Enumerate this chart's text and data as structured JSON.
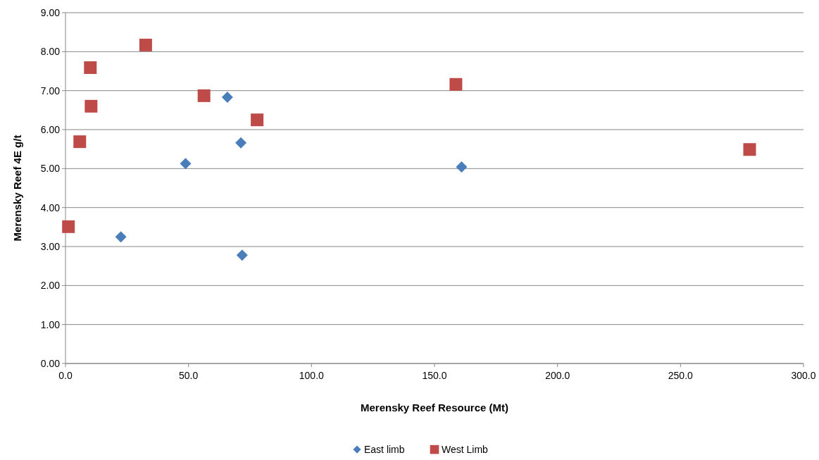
{
  "chart_data": {
    "type": "scatter",
    "xlabel": "Merensky Reef Resource (Mt)",
    "ylabel": "Merensky Reef 4E g/t",
    "xlim": [
      0,
      300
    ],
    "xticks": [
      {
        "value": 0,
        "label": "0.0"
      },
      {
        "value": 50,
        "label": "50.0"
      },
      {
        "value": 100,
        "label": "100.0"
      },
      {
        "value": 150,
        "label": "150.0"
      },
      {
        "value": 200,
        "label": "200.0"
      },
      {
        "value": 250,
        "label": "250.0"
      },
      {
        "value": 300,
        "label": "300.0"
      }
    ],
    "ylim": [
      0,
      9
    ],
    "yticks": [
      {
        "value": 0,
        "label": "0.00"
      },
      {
        "value": 1,
        "label": "1.00"
      },
      {
        "value": 2,
        "label": "2.00"
      },
      {
        "value": 3,
        "label": "3.00"
      },
      {
        "value": 4,
        "label": "4.00"
      },
      {
        "value": 5,
        "label": "5.00"
      },
      {
        "value": 6,
        "label": "6.00"
      },
      {
        "value": 7,
        "label": "7.00"
      },
      {
        "value": 8,
        "label": "8.00"
      },
      {
        "value": 9,
        "label": "9.00"
      }
    ],
    "grid": "y",
    "legend": "bottom",
    "series": [
      {
        "name": "East limb",
        "color": "#4a7ebb",
        "marker": "diamond",
        "x": [
          22.5,
          48.8,
          65.8,
          71.3,
          71.8,
          161.0
        ],
        "values": [
          3.25,
          5.13,
          6.83,
          5.66,
          2.78,
          5.04
        ]
      },
      {
        "name": "West Limb",
        "color": "#be4b48",
        "marker": "square",
        "x": [
          1.2,
          5.8,
          10.1,
          10.4,
          32.6,
          56.3,
          77.9,
          158.7,
          278.1
        ],
        "values": [
          3.51,
          5.69,
          7.59,
          6.6,
          8.17,
          6.87,
          6.25,
          7.16,
          5.49
        ]
      }
    ]
  }
}
